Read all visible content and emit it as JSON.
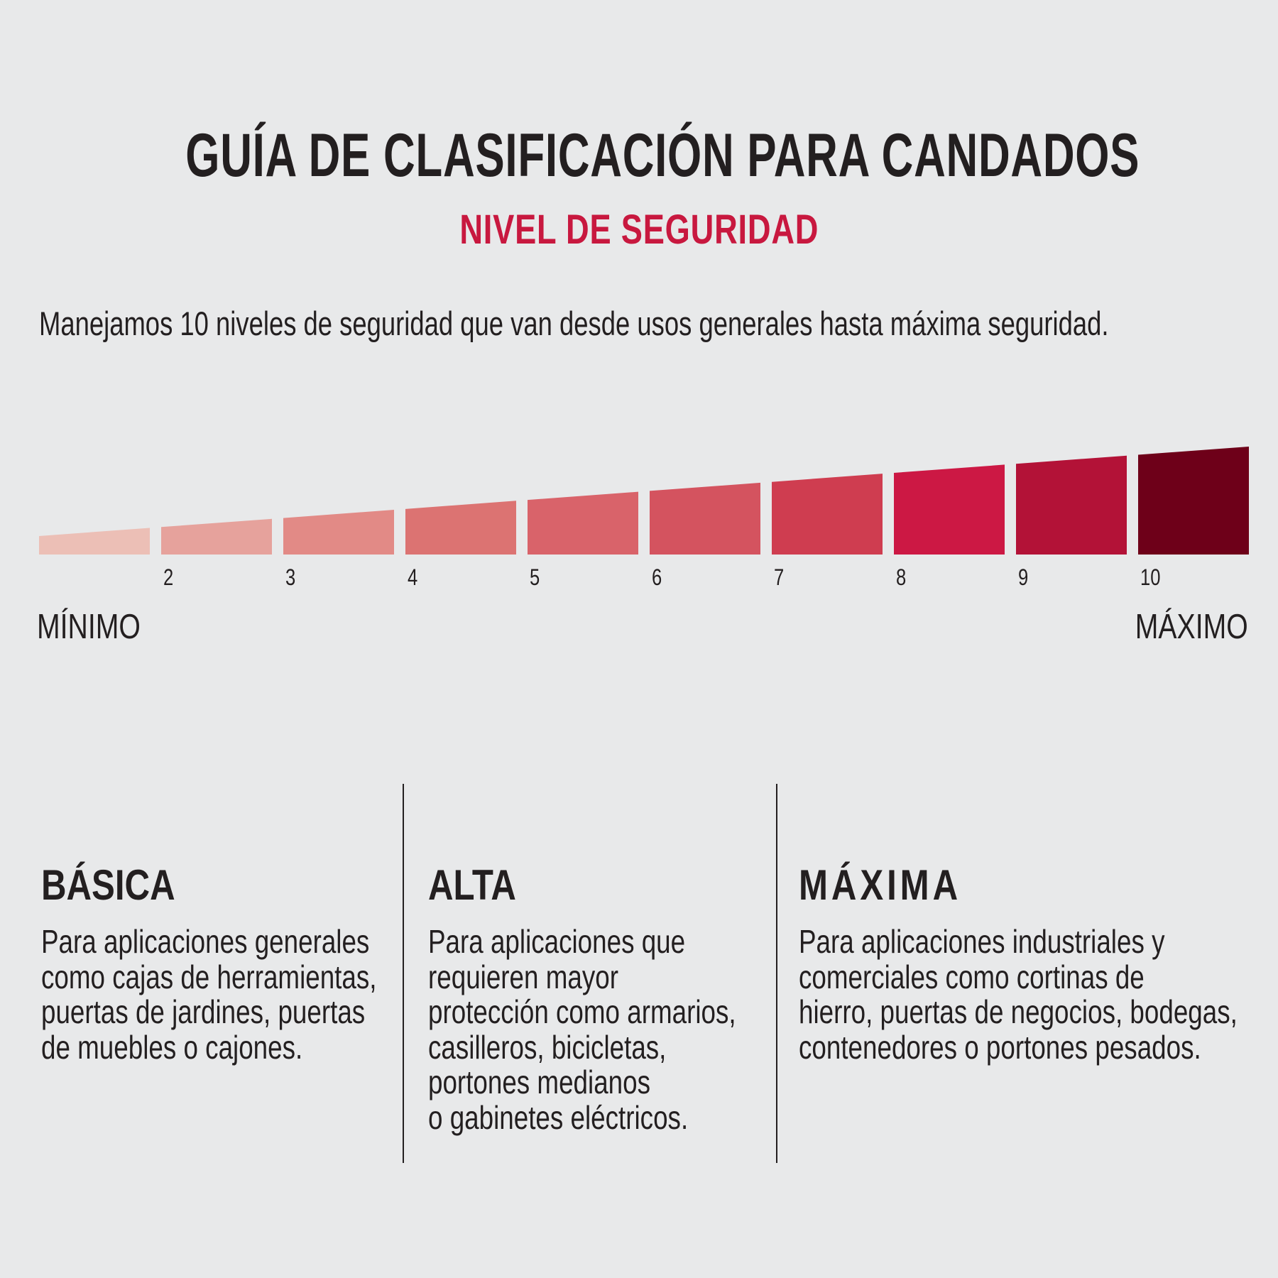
{
  "header": {
    "title": "GUÍA DE CLASIFICACIÓN PARA CANDADOS",
    "subtitle": "NIVEL DE SEGURIDAD",
    "intro": "Manejamos 10 niveles de seguridad que van desde usos generales hasta máxima seguridad."
  },
  "scale": {
    "levels": [
      {
        "label": "",
        "color": "#ecbfb6"
      },
      {
        "label": "2",
        "color": "#e6a29c"
      },
      {
        "label": "3",
        "color": "#e28a86"
      },
      {
        "label": "4",
        "color": "#dc7372"
      },
      {
        "label": "5",
        "color": "#d9636a"
      },
      {
        "label": "6",
        "color": "#d4535f"
      },
      {
        "label": "7",
        "color": "#cf3d50"
      },
      {
        "label": "8",
        "color": "#cc1844"
      },
      {
        "label": "9",
        "color": "#b31237"
      },
      {
        "label": "10",
        "color": "#6e0019"
      }
    ],
    "min_label": "MÍNIMO",
    "max_label": "MÁXIMO"
  },
  "categories": [
    {
      "title": "BÁSICA",
      "lines": [
        "Para aplicaciones generales",
        "como cajas de herramientas,",
        "puertas de jardines, puertas",
        "de muebles o cajones."
      ]
    },
    {
      "title": "ALTA",
      "lines": [
        "Para aplicaciones que",
        "requieren mayor",
        "protección como armarios,",
        "casilleros, bicicletas,",
        "portones medianos",
        "o gabinetes eléctricos."
      ]
    },
    {
      "title": "MÁXIMA",
      "lines": [
        "Para aplicaciones industriales y",
        "comerciales como cortinas de",
        "hierro, puertas de negocios, bodegas,",
        "contenedores o portones pesados."
      ]
    }
  ],
  "colors": {
    "background": "#e8e9ea",
    "accent": "#c8183f",
    "text": "#231f20"
  }
}
